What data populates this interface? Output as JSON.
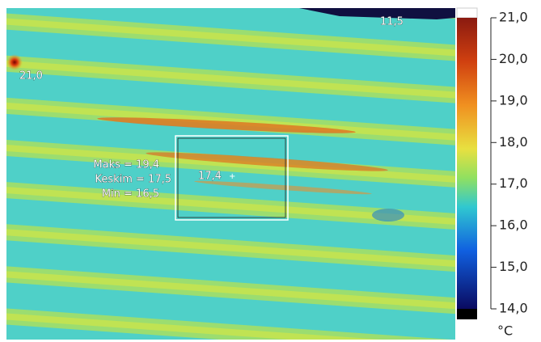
{
  "image": {
    "spot_top": "11,5",
    "spot_left": "21,0",
    "spot_center": "17,4",
    "box_stats": [
      "Maks = 19,4",
      "Keskim = 17,5",
      "Min = 16,5"
    ]
  },
  "colorbar": {
    "lim": [
      14,
      21
    ],
    "ticks": [
      {
        "value": 21,
        "label": "21,0"
      },
      {
        "value": 20,
        "label": "20,0"
      },
      {
        "value": 19,
        "label": "19,0"
      },
      {
        "value": 18,
        "label": "18,0"
      },
      {
        "value": 17,
        "label": "17,0"
      },
      {
        "value": 16,
        "label": "16,0"
      },
      {
        "value": 15,
        "label": "15,0"
      },
      {
        "value": 14,
        "label": "14,0"
      }
    ],
    "unit": "°C"
  }
}
